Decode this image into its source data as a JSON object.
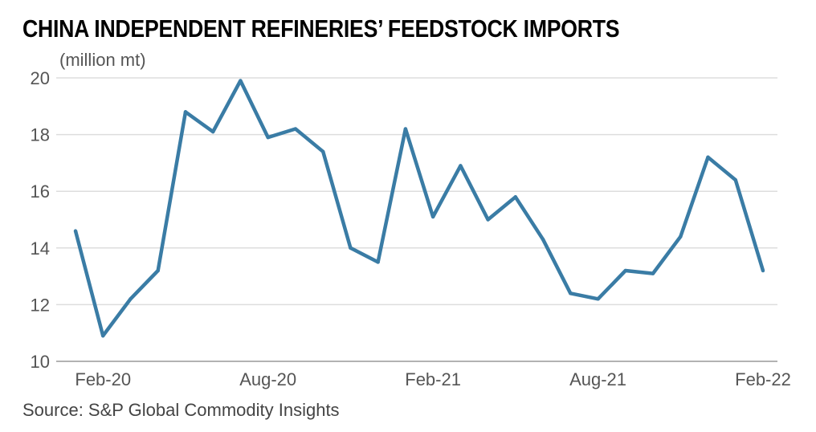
{
  "chart_data": {
    "type": "line",
    "title": "CHINA INDEPENDENT REFINERIES’ FEEDSTOCK IMPORTS",
    "ylabel": "(million mt)",
    "xlabel": "",
    "source": "Source: S&P Global Commodity Insights",
    "ylim": [
      10,
      20
    ],
    "yticks": [
      10,
      12,
      14,
      16,
      18,
      20
    ],
    "xtick_labels": [
      {
        "label": "Feb-20",
        "index": 1
      },
      {
        "label": "Aug-20",
        "index": 7
      },
      {
        "label": "Feb-21",
        "index": 13
      },
      {
        "label": "Aug-21",
        "index": 19
      },
      {
        "label": "Feb-22",
        "index": 25
      }
    ],
    "grid": true,
    "color": "#3a7ca5",
    "x": [
      "Jan-20",
      "Feb-20",
      "Mar-20",
      "Apr-20",
      "May-20",
      "Jun-20",
      "Jul-20",
      "Aug-20",
      "Sep-20",
      "Oct-20",
      "Nov-20",
      "Dec-20",
      "Jan-21",
      "Feb-21",
      "Mar-21",
      "Apr-21",
      "May-21",
      "Jun-21",
      "Jul-21",
      "Aug-21",
      "Sep-21",
      "Oct-21",
      "Nov-21",
      "Dec-21",
      "Jan-22",
      "Feb-22"
    ],
    "values": [
      14.6,
      10.9,
      12.2,
      13.2,
      18.8,
      18.1,
      19.9,
      17.9,
      18.2,
      17.4,
      14.0,
      13.5,
      18.2,
      15.1,
      16.9,
      15.0,
      15.8,
      14.3,
      12.4,
      12.2,
      13.2,
      13.1,
      14.4,
      17.2,
      16.4,
      13.2
    ]
  }
}
